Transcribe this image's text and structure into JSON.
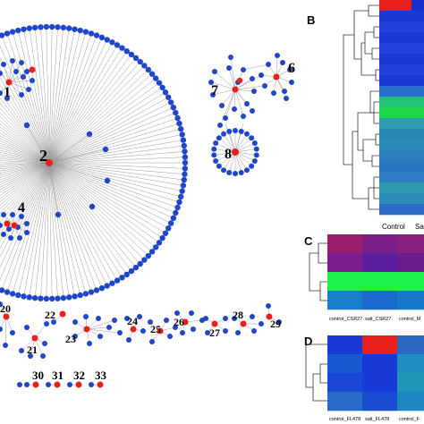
{
  "panel_letters": {
    "b": "B",
    "c": "C",
    "d": "D"
  },
  "colors": {
    "hub_node": "#e8201c",
    "target_node": "#1f46c8",
    "edge": "#9a9a9a",
    "dendrogram": "#333333"
  },
  "network_labels": {
    "n1": "1",
    "n2": "2",
    "n4": "4",
    "n6": "6",
    "n7": "7",
    "n8": "8",
    "n20": "20",
    "n21": "21",
    "n22": "22",
    "n23": "23",
    "n24": "24",
    "n25": "25",
    "n26": "26",
    "n27": "27",
    "n28": "28",
    "n29": "29",
    "n30": "30",
    "n31": "31",
    "n32": "32",
    "n33": "33"
  },
  "heatmap_b": {
    "column_labels": [
      "Control",
      "Sa"
    ],
    "cells": [
      [
        "#e8201c",
        "#1a2fd0"
      ],
      [
        "#1a3ad8",
        "#1a3ad8"
      ],
      [
        "#2040d8",
        "#2040d8"
      ],
      [
        "#1a3ad8",
        "#1a3ad8"
      ],
      [
        "#2244dc",
        "#2244dc"
      ],
      [
        "#1a3ad8",
        "#1a3ad8"
      ],
      [
        "#2040d8",
        "#2040d8"
      ],
      [
        "#1a3ad8",
        "#1a3ad8"
      ],
      [
        "#2b6fd0",
        "#2b6fd0"
      ],
      [
        "#23c47a",
        "#23c47a"
      ],
      [
        "#1ed84a",
        "#1ed84a"
      ],
      [
        "#2d9bb0",
        "#2d9bb0"
      ],
      [
        "#2a88b8",
        "#2a88b8"
      ],
      [
        "#2a8cb6",
        "#2a8cb6"
      ],
      [
        "#2a80ba",
        "#2a80ba"
      ],
      [
        "#2b76c0",
        "#2b76c0"
      ],
      [
        "#2d7ec0",
        "#2d7ec0"
      ],
      [
        "#2f9aae",
        "#2f9aae"
      ],
      [
        "#2f8cb6",
        "#2f8cb6"
      ],
      [
        "#2b6cc6",
        "#2b6cc6"
      ]
    ]
  },
  "heatmap_c": {
    "column_labels": [
      "control_CSR27",
      "salt_CSR27",
      "control_M"
    ],
    "cells": [
      [
        "#9a1e6e",
        "#7a1e8a",
        "#8a1e7e"
      ],
      [
        "#7a1e8e",
        "#5a1e9e",
        "#6a1e8e"
      ],
      [
        "#1ef24a",
        "#1ef24a",
        "#1ef24a"
      ],
      [
        "#1a7ec8",
        "#1a6ad0",
        "#1a78c8"
      ]
    ]
  },
  "heatmap_d": {
    "column_labels": [
      "control_FL478",
      "salt_FL478",
      "control_F"
    ],
    "cells": [
      [
        "#1a3ad8",
        "#e8201c",
        "#2a6ac0"
      ],
      [
        "#1a5ad0",
        "#1a3ad8",
        "#1e8ec0"
      ],
      [
        "#1a48d4",
        "#1a3ad8",
        "#2298b8"
      ],
      [
        "#2a6ac8",
        "#1a4cd2",
        "#1e86c0"
      ]
    ]
  }
}
